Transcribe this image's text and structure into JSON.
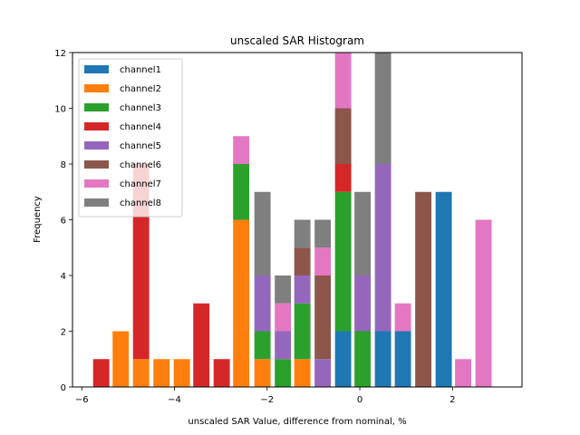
{
  "chart_data": {
    "type": "bar",
    "stacked": true,
    "title": "unscaled SAR Histogram",
    "xlabel": "unscaled SAR Value, difference from nominal, %",
    "ylabel": "Frequency",
    "xlim": [
      -6.2,
      3.5
    ],
    "ylim": [
      0,
      12
    ],
    "xticks": [
      -6,
      -4,
      -2,
      0,
      2
    ],
    "xtick_labels": [
      "−6",
      "−4",
      "−2",
      "0",
      "2"
    ],
    "yticks": [
      0,
      2,
      4,
      6,
      8,
      10,
      12
    ],
    "ytick_labels": [
      "0",
      "2",
      "4",
      "6",
      "8",
      "10",
      "12"
    ],
    "bar_width": 0.35,
    "legend_position": "top-left",
    "grid": false,
    "x": [
      -5.58,
      -5.16,
      -4.72,
      -4.28,
      -3.84,
      -3.42,
      -2.98,
      -2.56,
      -2.1,
      -1.66,
      -1.24,
      -0.8,
      -0.36,
      0.06,
      0.5,
      0.93,
      1.37,
      1.81,
      2.23,
      2.67
    ],
    "series": [
      {
        "name": "channel1",
        "color": "#1f77b4",
        "values": [
          0,
          0,
          0,
          0,
          0,
          0,
          0,
          0,
          0,
          0,
          0,
          0,
          2,
          0,
          2,
          2,
          0,
          7,
          0,
          0
        ]
      },
      {
        "name": "channel2",
        "color": "#ff7f0e",
        "values": [
          0,
          2,
          1,
          1,
          1,
          0,
          0,
          6,
          1,
          0,
          1,
          0,
          0,
          0,
          0,
          0,
          0,
          0,
          0,
          0
        ]
      },
      {
        "name": "channel3",
        "color": "#2ca02c",
        "values": [
          0,
          0,
          0,
          0,
          0,
          0,
          0,
          2,
          1,
          1,
          2,
          0,
          5,
          2,
          0,
          0,
          0,
          0,
          0,
          0
        ]
      },
      {
        "name": "channel4",
        "color": "#d62728",
        "values": [
          1,
          0,
          7,
          0,
          0,
          3,
          1,
          0,
          0,
          0,
          0,
          0,
          1,
          0,
          0,
          0,
          0,
          0,
          0,
          0
        ]
      },
      {
        "name": "channel5",
        "color": "#9467bd",
        "values": [
          0,
          0,
          0,
          0,
          0,
          0,
          0,
          0,
          2,
          1,
          1,
          1,
          0,
          2,
          6,
          0,
          0,
          0,
          0,
          0
        ]
      },
      {
        "name": "channel6",
        "color": "#8c564b",
        "values": [
          0,
          0,
          0,
          0,
          0,
          0,
          0,
          0,
          0,
          0,
          1,
          3,
          2,
          0,
          0,
          0,
          7,
          0,
          0,
          0
        ]
      },
      {
        "name": "channel7",
        "color": "#e377c2",
        "values": [
          0,
          0,
          0,
          0,
          0,
          0,
          0,
          1,
          0,
          1,
          0,
          1,
          2,
          0,
          0,
          1,
          0,
          0,
          1,
          6
        ]
      },
      {
        "name": "channel8",
        "color": "#7f7f7f",
        "values": [
          0,
          0,
          0,
          0,
          0,
          0,
          0,
          0,
          3,
          1,
          1,
          1,
          0,
          3,
          4,
          0,
          0,
          0,
          0,
          0
        ]
      }
    ]
  }
}
